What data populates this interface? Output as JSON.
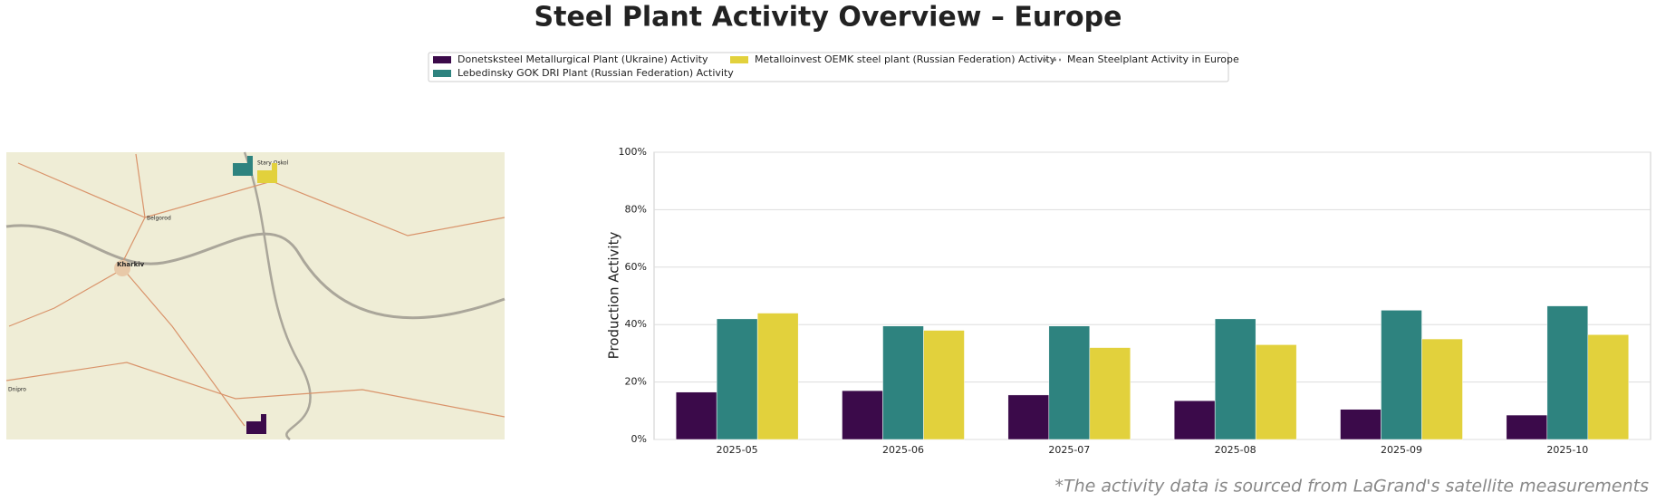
{
  "chart_data": {
    "type": "bar",
    "title": "Steel Plant Activity Overview – Europe",
    "categories": [
      "2025-05",
      "2025-06",
      "2025-07",
      "2025-08",
      "2025-09",
      "2025-10"
    ],
    "series": [
      {
        "name": "Donetsksteel Metallurgical Plant (Ukraine) Activity",
        "color": "#3b0a4a",
        "values": [
          16.5,
          17,
          15.5,
          13.5,
          10.5,
          8.5
        ]
      },
      {
        "name": "Lebedinsky GOK DRI Plant (Russian Federation) Activity",
        "color": "#2e837f",
        "values": [
          42,
          39.5,
          39.5,
          42,
          45,
          46.5
        ]
      },
      {
        "name": "Metalloinvest OEMK steel plant (Russian Federation) Activity",
        "color": "#e2d13c",
        "values": [
          44,
          38,
          32,
          33,
          35,
          36.5
        ]
      },
      {
        "name": "Mean Steelplant Activity in Europe",
        "color": "#888888",
        "dash": true,
        "values": [
          null,
          null,
          null,
          null,
          null,
          null
        ]
      }
    ],
    "ylabel": "Production Activity",
    "ylim": [
      0,
      100
    ],
    "yticks": [
      {
        "value": 0,
        "label": "0%"
      },
      {
        "value": 20,
        "label": "20%"
      },
      {
        "value": 40,
        "label": "40%"
      },
      {
        "value": 60,
        "label": "60%"
      },
      {
        "value": 80,
        "label": "80%"
      },
      {
        "value": 100,
        "label": "100%"
      }
    ],
    "grid": true,
    "footnote": "*The activity data is sourced from LaGrand's satellite measurements",
    "map_labels": [
      "Kharkiv",
      "Belgorod",
      "Dnipro",
      "Stary Oskol"
    ]
  }
}
